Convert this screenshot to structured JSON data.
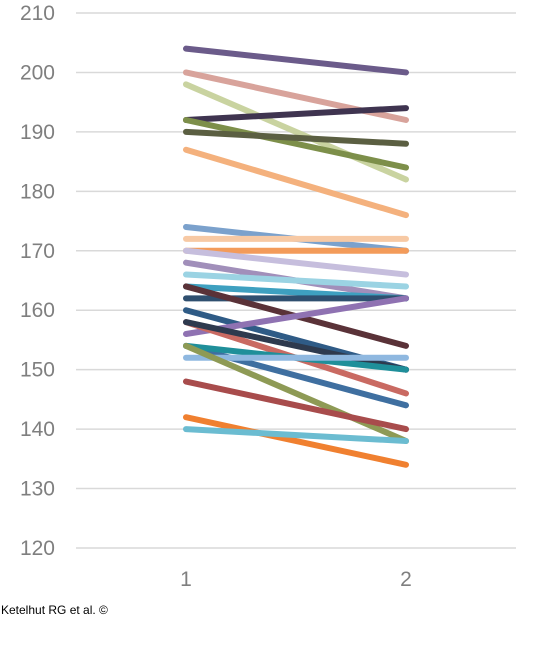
{
  "chart_data": {
    "type": "line",
    "title": "",
    "xlabel": "",
    "ylabel": "",
    "categories": [
      "1",
      "2"
    ],
    "ylim": [
      120,
      210
    ],
    "yticks": [
      "120",
      "130",
      "140",
      "150",
      "160",
      "170",
      "180",
      "190",
      "200",
      "210"
    ],
    "grid": true,
    "legend": "none",
    "series": [
      {
        "values": [
          204,
          200
        ],
        "color": "#6b5b8a"
      },
      {
        "values": [
          200,
          192
        ],
        "color": "#d8a39b"
      },
      {
        "values": [
          198,
          182
        ],
        "color": "#c9d3a0"
      },
      {
        "values": [
          192,
          194
        ],
        "color": "#3f3450"
      },
      {
        "values": [
          192,
          184
        ],
        "color": "#7d8f4a"
      },
      {
        "values": [
          190,
          188
        ],
        "color": "#5b5f42"
      },
      {
        "values": [
          187,
          176
        ],
        "color": "#f4b17d"
      },
      {
        "values": [
          174,
          170
        ],
        "color": "#7ba1cc"
      },
      {
        "values": [
          172,
          172
        ],
        "color": "#f7c9a4"
      },
      {
        "values": [
          170,
          170
        ],
        "color": "#f39b5a"
      },
      {
        "values": [
          170,
          166
        ],
        "color": "#c6bedd"
      },
      {
        "values": [
          168,
          162
        ],
        "color": "#a18fba"
      },
      {
        "values": [
          166,
          164
        ],
        "color": "#9bd3e3"
      },
      {
        "values": [
          164,
          162
        ],
        "color": "#3ea0c0"
      },
      {
        "values": [
          162,
          162
        ],
        "color": "#2f4f6f"
      },
      {
        "values": [
          164,
          154
        ],
        "color": "#5a3238"
      },
      {
        "values": [
          160,
          150
        ],
        "color": "#2f5b86"
      },
      {
        "values": [
          156,
          162
        ],
        "color": "#8f72b2"
      },
      {
        "values": [
          158,
          146
        ],
        "color": "#c96a62"
      },
      {
        "values": [
          158,
          150
        ],
        "color": "#2e3a4e"
      },
      {
        "values": [
          154,
          144
        ],
        "color": "#3f6fa0"
      },
      {
        "values": [
          154,
          150
        ],
        "color": "#1f8f9a"
      },
      {
        "values": [
          152,
          152
        ],
        "color": "#8fb8e0"
      },
      {
        "values": [
          154,
          138
        ],
        "color": "#8e9a55"
      },
      {
        "values": [
          148,
          140
        ],
        "color": "#a84c4c"
      },
      {
        "values": [
          142,
          134
        ],
        "color": "#f08030"
      },
      {
        "values": [
          140,
          138
        ],
        "color": "#6bbcd1"
      }
    ]
  },
  "footer": {
    "credit": "Ketelhut RG et al. ©"
  }
}
